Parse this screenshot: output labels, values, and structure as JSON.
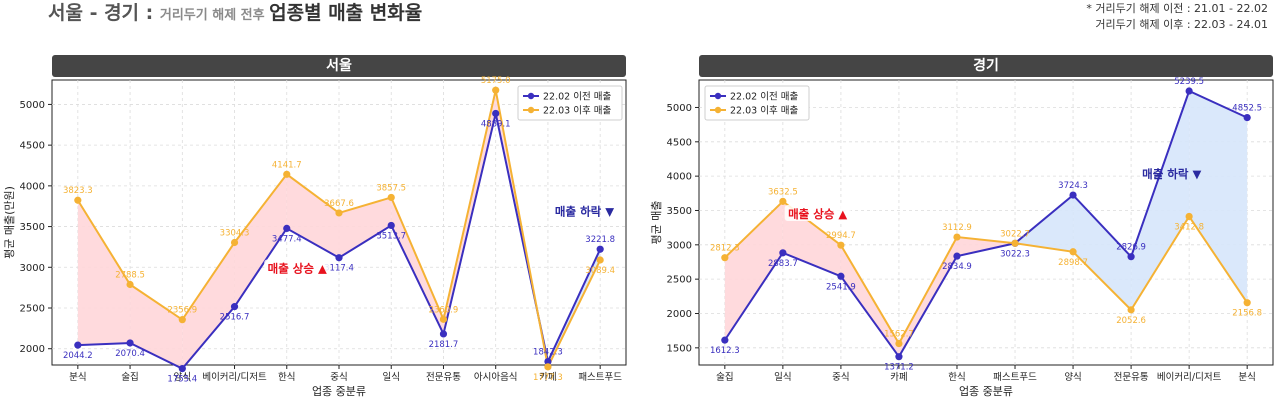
{
  "header": {
    "title_main": "서울 - 경기 : ",
    "title_sub": "거리두기 해제 전후 ",
    "title_end": "업종별 매출 변화율",
    "note_line1": "* 거리두기 해제 이전 : 21.01 - 22.02",
    "note_line2": "거리두기 해제 이후 : 22.03 - 24.01"
  },
  "colors": {
    "before": "#3a2fbf",
    "after": "#f5b234",
    "rise_fill": "#ffd6d9",
    "fall_fill": "#d6e6fb",
    "rise_text": "#e8121e",
    "fall_text": "#2a2aa0",
    "header_bg": "#454545"
  },
  "chart_data": [
    {
      "type": "line",
      "title": "서울",
      "xlabel": "업종 중분류",
      "ylabel": "평균 매출(만원)",
      "categories": [
        "분식",
        "술집",
        "양식",
        "베이커리/디저트",
        "한식",
        "중식",
        "일식",
        "전문유통",
        "아시아음식",
        "카페",
        "패스트푸드"
      ],
      "series": [
        {
          "name": "22.02 이전 매출",
          "values": [
            2044.2,
            2070.4,
            1755.4,
            2516.7,
            3477.4,
            3117.4,
            3513.7,
            2181.7,
            4889.1,
            1842.3,
            3221.8
          ]
        },
        {
          "name": "22.03 이후 매출",
          "values": [
            3823.3,
            2788.5,
            2356.9,
            3304.3,
            4141.7,
            3667.6,
            3857.5,
            2360.9,
            5175.0,
            1777.3,
            3089.4
          ]
        }
      ],
      "ylim": [
        1800,
        5300
      ],
      "yticks": [
        2000,
        2500,
        3000,
        3500,
        4000,
        4500,
        5000
      ],
      "grid": true,
      "legend": "top-right",
      "annotations": [
        {
          "text": "매출 상승 ▲",
          "kind": "rise",
          "at_x": 4.2,
          "at_y": 2960
        },
        {
          "text": "매출 하락 ▼",
          "kind": "fall",
          "at_x": 9.7,
          "at_y": 3660
        }
      ]
    },
    {
      "type": "line",
      "title": "경기",
      "xlabel": "업종 중분류",
      "ylabel": "평균 매출",
      "categories": [
        "술집",
        "일식",
        "중식",
        "카페",
        "한식",
        "패스트푸드",
        "양식",
        "전문유통",
        "베이커리/디저트",
        "분식"
      ],
      "series": [
        {
          "name": "22.02 이전 매출",
          "values": [
            1612.3,
            2883.7,
            2541.9,
            1371.2,
            2834.9,
            3022.3,
            3724.3,
            2826.9,
            5239.5,
            4852.5
          ]
        },
        {
          "name": "22.03 이후 매출",
          "values": [
            2812.3,
            3632.5,
            2994.7,
            1562.7,
            3112.9,
            3022.7,
            2898.7,
            2052.6,
            3412.8,
            2156.8
          ]
        }
      ],
      "ylim": [
        1250,
        5400
      ],
      "yticks": [
        1500,
        2000,
        2500,
        3000,
        3500,
        4000,
        4500,
        5000
      ],
      "grid": true,
      "legend": "top-left",
      "annotations": [
        {
          "text": "매출 상승 ▲",
          "kind": "rise",
          "at_x": 1.6,
          "at_y": 3420
        },
        {
          "text": "매출 하락 ▼",
          "kind": "fall",
          "at_x": 7.7,
          "at_y": 4000
        }
      ]
    }
  ]
}
